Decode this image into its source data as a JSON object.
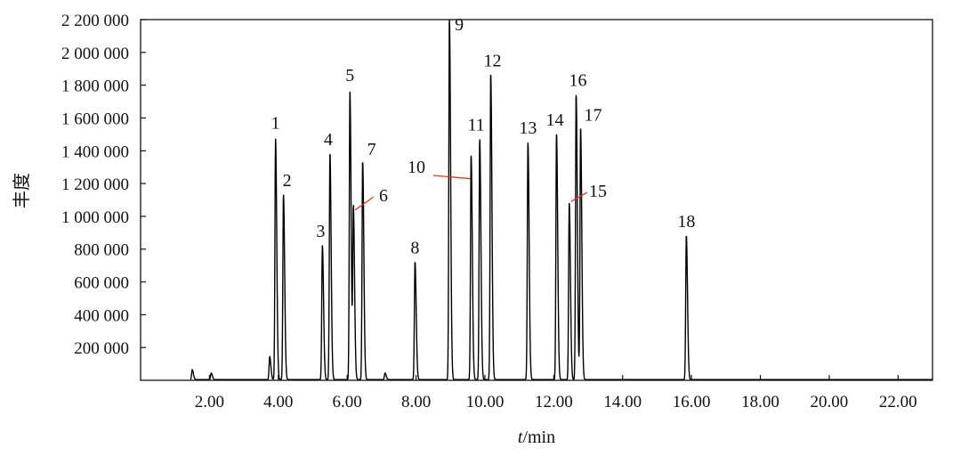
{
  "chart_data": {
    "type": "line",
    "title": "",
    "xlabel_italic": "t",
    "xlabel_rest": "/min",
    "ylabel": "丰度",
    "xlim": [
      0.0,
      23.0
    ],
    "ylim": [
      0,
      2200000
    ],
    "x_ticks": [
      2,
      4,
      6,
      8,
      10,
      12,
      14,
      16,
      18,
      20,
      22
    ],
    "x_tick_labels": [
      "2.00",
      "4.00",
      "6.00",
      "8.00",
      "10.00",
      "12.00",
      "14.00",
      "16.00",
      "18.00",
      "20.00",
      "22.00"
    ],
    "y_ticks": [
      200000,
      400000,
      600000,
      800000,
      1000000,
      1200000,
      1400000,
      1600000,
      1800000,
      2000000,
      2200000
    ],
    "y_tick_labels": [
      "200 000",
      "400 000",
      "600 000",
      "800 000",
      "1 000 000",
      "1 200 000",
      "1 400 000",
      "1 600 000",
      "1 800 000",
      "2 000 000",
      "2 200 000"
    ],
    "peaks": [
      {
        "label": "1",
        "x": 3.92,
        "y": 1470000
      },
      {
        "label": "2",
        "x": 4.15,
        "y": 1130000
      },
      {
        "label": "3",
        "x": 5.28,
        "y": 820000
      },
      {
        "label": "4",
        "x": 5.5,
        "y": 1380000
      },
      {
        "label": "5",
        "x": 6.08,
        "y": 1760000
      },
      {
        "label": "6",
        "x": 6.18,
        "y": 1050000
      },
      {
        "label": "7",
        "x": 6.45,
        "y": 1330000
      },
      {
        "label": "8",
        "x": 7.97,
        "y": 720000
      },
      {
        "label": "9",
        "x": 8.97,
        "y": 2200000
      },
      {
        "label": "10",
        "x": 9.6,
        "y": 1370000
      },
      {
        "label": "11",
        "x": 9.85,
        "y": 1470000
      },
      {
        "label": "12",
        "x": 10.17,
        "y": 1860000
      },
      {
        "label": "13",
        "x": 11.25,
        "y": 1450000
      },
      {
        "label": "14",
        "x": 12.08,
        "y": 1500000
      },
      {
        "label": "15",
        "x": 12.45,
        "y": 1080000
      },
      {
        "label": "16",
        "x": 12.65,
        "y": 1740000
      },
      {
        "label": "17",
        "x": 12.78,
        "y": 1530000
      },
      {
        "label": "18",
        "x": 15.85,
        "y": 880000
      }
    ],
    "minor_peaks": [
      {
        "x": 1.5,
        "y": 60000
      },
      {
        "x": 2.05,
        "y": 40000
      },
      {
        "x": 3.75,
        "y": 140000
      },
      {
        "x": 7.1,
        "y": 40000
      }
    ],
    "line_color": "#000000",
    "callout_color": "#e8301c",
    "grid": false
  }
}
